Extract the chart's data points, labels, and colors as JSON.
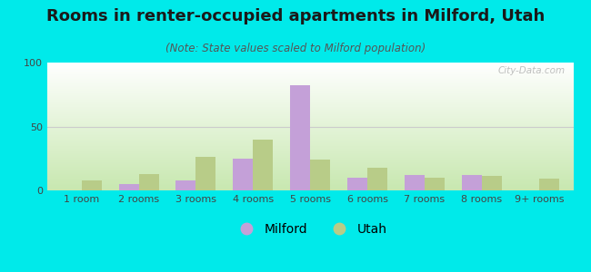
{
  "title": "Rooms in renter-occupied apartments in Milford, Utah",
  "subtitle": "(Note: State values scaled to Milford population)",
  "categories": [
    "1 room",
    "2 rooms",
    "3 rooms",
    "4 rooms",
    "5 rooms",
    "6 rooms",
    "7 rooms",
    "8 rooms",
    "9+ rooms"
  ],
  "milford_values": [
    0,
    5,
    8,
    25,
    82,
    10,
    12,
    12,
    0
  ],
  "utah_values": [
    8,
    13,
    26,
    40,
    24,
    18,
    10,
    11,
    9
  ],
  "milford_color": "#c4a0d8",
  "utah_color": "#b8cc88",
  "background_color": "#00eaea",
  "ylim": [
    0,
    100
  ],
  "yticks": [
    0,
    50,
    100
  ],
  "bar_width": 0.35,
  "title_fontsize": 13,
  "subtitle_fontsize": 8.5,
  "legend_fontsize": 10,
  "tick_fontsize": 8,
  "watermark_text": "City-Data.com"
}
